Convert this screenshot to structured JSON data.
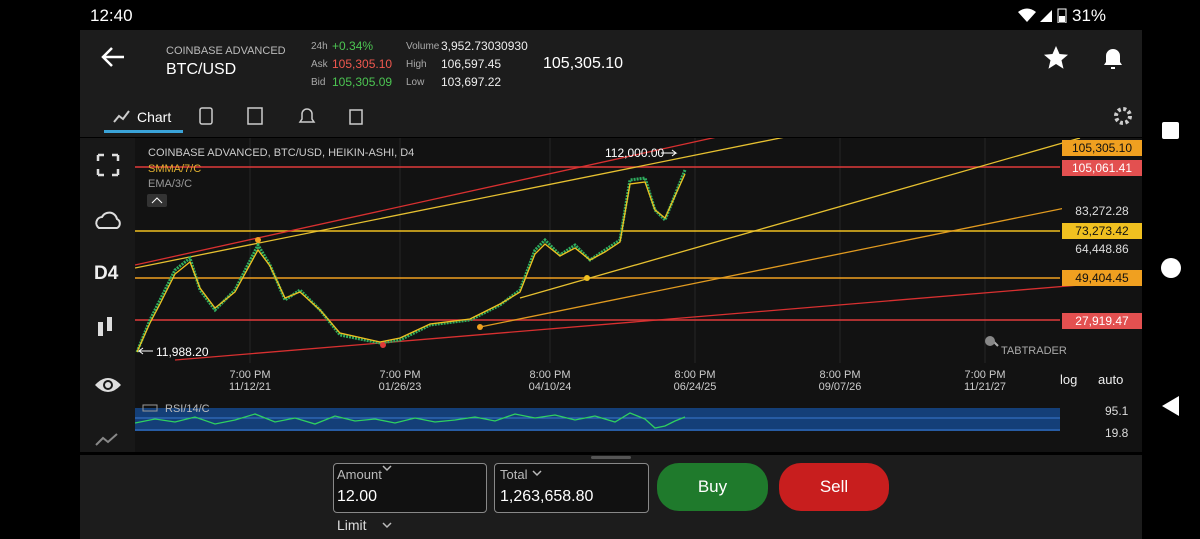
{
  "status": {
    "time": "12:40",
    "battery": "31%"
  },
  "header": {
    "exchange": "COINBASE ADVANCED",
    "pair": "BTC/USD",
    "change_label": "24h",
    "change": "+0.34%",
    "ask_label": "Ask",
    "ask": "105,305.10",
    "bid_label": "Bid",
    "bid": "105,305.09",
    "volume_label": "Volume",
    "volume": "3,952.73030930",
    "high_label": "High",
    "high": "106,597.45",
    "low_label": "Low",
    "low": "103,697.22",
    "last": "105,305.10"
  },
  "tabs": {
    "chart": "Chart"
  },
  "sidebar": {
    "interval": "D4"
  },
  "chart": {
    "title": "COINBASE ADVANCED, BTC/USD, HEIKIN-ASHI, D4",
    "indicator1": "SMMA/7/C",
    "indicator2": "EMA/3/C",
    "high_marker": "112,000.00",
    "low_marker": "11,988.20",
    "price_labels": [
      "105,305.10",
      "105,061.41",
      "83,272.28",
      "73,273.42",
      "64,448.86",
      "49,404.45",
      "27,919.47"
    ],
    "time_labels": [
      [
        "7:00 PM",
        "11/12/21"
      ],
      [
        "7:00 PM",
        "01/26/23"
      ],
      [
        "8:00 PM",
        "04/10/24"
      ],
      [
        "8:00 PM",
        "06/24/25"
      ],
      [
        "8:00 PM",
        "09/07/26"
      ],
      [
        "7:00 PM",
        "11/21/27"
      ]
    ],
    "log": "log",
    "auto": "auto",
    "watermark": "TABTRADER"
  },
  "rsi": {
    "label": "RSI/14/C",
    "upper": "95.1",
    "lower": "19.8"
  },
  "order": {
    "amount_label": "Amount",
    "amount": "12.00",
    "total_label": "Total",
    "total": "1,263,658.80",
    "buy": "Buy",
    "sell": "Sell",
    "type": "Limit"
  }
}
